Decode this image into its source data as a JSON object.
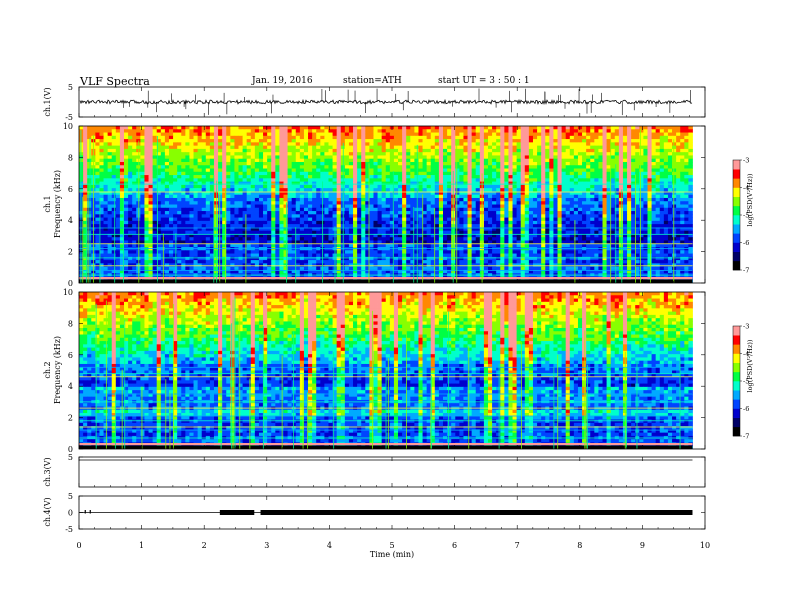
{
  "header": {
    "title": "VLF  Spectra",
    "date": "Jan. 19, 2016",
    "station": "station=ATH",
    "start": "start  UT =   3  : 50 : 1"
  },
  "colors": {
    "spectrogram_scale": [
      "#000000",
      "#000066",
      "#0000cc",
      "#0044ff",
      "#00aaff",
      "#00ffcc",
      "#00ff44",
      "#88ff00",
      "#ffff00",
      "#ff8800",
      "#ff0000",
      "#ff9999",
      "#ffffff"
    ],
    "waveform": "#000000",
    "frame": "#000000"
  },
  "chart_data": [
    {
      "type": "line",
      "name": "ch1-waveform",
      "ylabel": "ch.1(V)",
      "ylim": [
        -5,
        5
      ],
      "yticks": [
        "5",
        "-5"
      ],
      "baseline": 0,
      "noise_amplitude": 0.6
    },
    {
      "type": "heatmap",
      "name": "ch1-spectrogram",
      "ylabel": "Frequency  (kHz)",
      "channel_label": "ch.1",
      "ylim": [
        0,
        10
      ],
      "yticks": [
        "0",
        "2",
        "4",
        "6",
        "8",
        "10"
      ],
      "colorbar": {
        "label": "log(PSD(V²/Hz))",
        "range": [
          -7,
          -3
        ],
        "ticks": [
          "-3",
          "-4",
          "-5",
          "-6",
          "-7"
        ]
      }
    },
    {
      "type": "heatmap",
      "name": "ch2-spectrogram",
      "ylabel": "Frequency  (kHz)",
      "channel_label": "ch.2",
      "ylim": [
        0,
        10
      ],
      "yticks": [
        "0",
        "2",
        "4",
        "6",
        "8",
        "10"
      ],
      "colorbar": {
        "label": "log(PSD(V²/Hz))",
        "range": [
          -7,
          -3
        ],
        "ticks": [
          "-3",
          "-4",
          "-5",
          "-6",
          "-7"
        ]
      }
    },
    {
      "type": "line",
      "name": "ch3-waveform",
      "ylabel": "ch.3(V)",
      "ylim": [
        -5,
        5
      ],
      "yticks": [
        "5"
      ],
      "baseline": 5
    },
    {
      "type": "line",
      "name": "ch4-waveform",
      "ylabel": "ch.4(V)",
      "ylim": [
        -5,
        5
      ],
      "yticks": [
        "5",
        "0",
        "-5"
      ],
      "baseline": 0,
      "thick_segments": [
        [
          2.25,
          2.8
        ],
        [
          2.9,
          9.8
        ]
      ]
    }
  ],
  "xaxis": {
    "label": "Time  (min)",
    "xlim": [
      0,
      10
    ],
    "ticks": [
      "0",
      "1",
      "2",
      "3",
      "4",
      "5",
      "6",
      "7",
      "8",
      "9",
      "10"
    ],
    "data_end": 9.8
  }
}
